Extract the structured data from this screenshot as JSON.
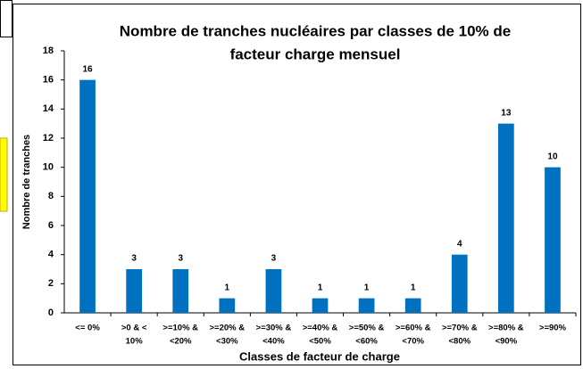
{
  "chart_data": {
    "type": "bar",
    "title": [
      "Nombre de tranches nucléaires par classes de 10% de",
      "facteur charge mensuel"
    ],
    "x_label": "Classes de facteur de charge",
    "y_label": "Nombre de tranches",
    "categories": [
      [
        "<= 0%"
      ],
      [
        ">0 & <",
        "10%"
      ],
      [
        ">=10% &",
        "<20%"
      ],
      [
        ">=20% &",
        "<30%"
      ],
      [
        ">=30% &",
        "<40%"
      ],
      [
        ">=40% &",
        "<50%"
      ],
      [
        ">=50% &",
        "<60%"
      ],
      [
        ">=60% &",
        "<70%"
      ],
      [
        ">=70% &",
        "<80%"
      ],
      [
        ">=80% &",
        "<90%"
      ],
      [
        ">=90%"
      ]
    ],
    "values": [
      16,
      3,
      3,
      1,
      3,
      1,
      1,
      1,
      4,
      13,
      10
    ],
    "color": "#0070c0",
    "ylim": [
      0,
      18
    ],
    "yticks": [
      0,
      2,
      4,
      6,
      8,
      10,
      12,
      14,
      16,
      18
    ],
    "grid": false
  }
}
